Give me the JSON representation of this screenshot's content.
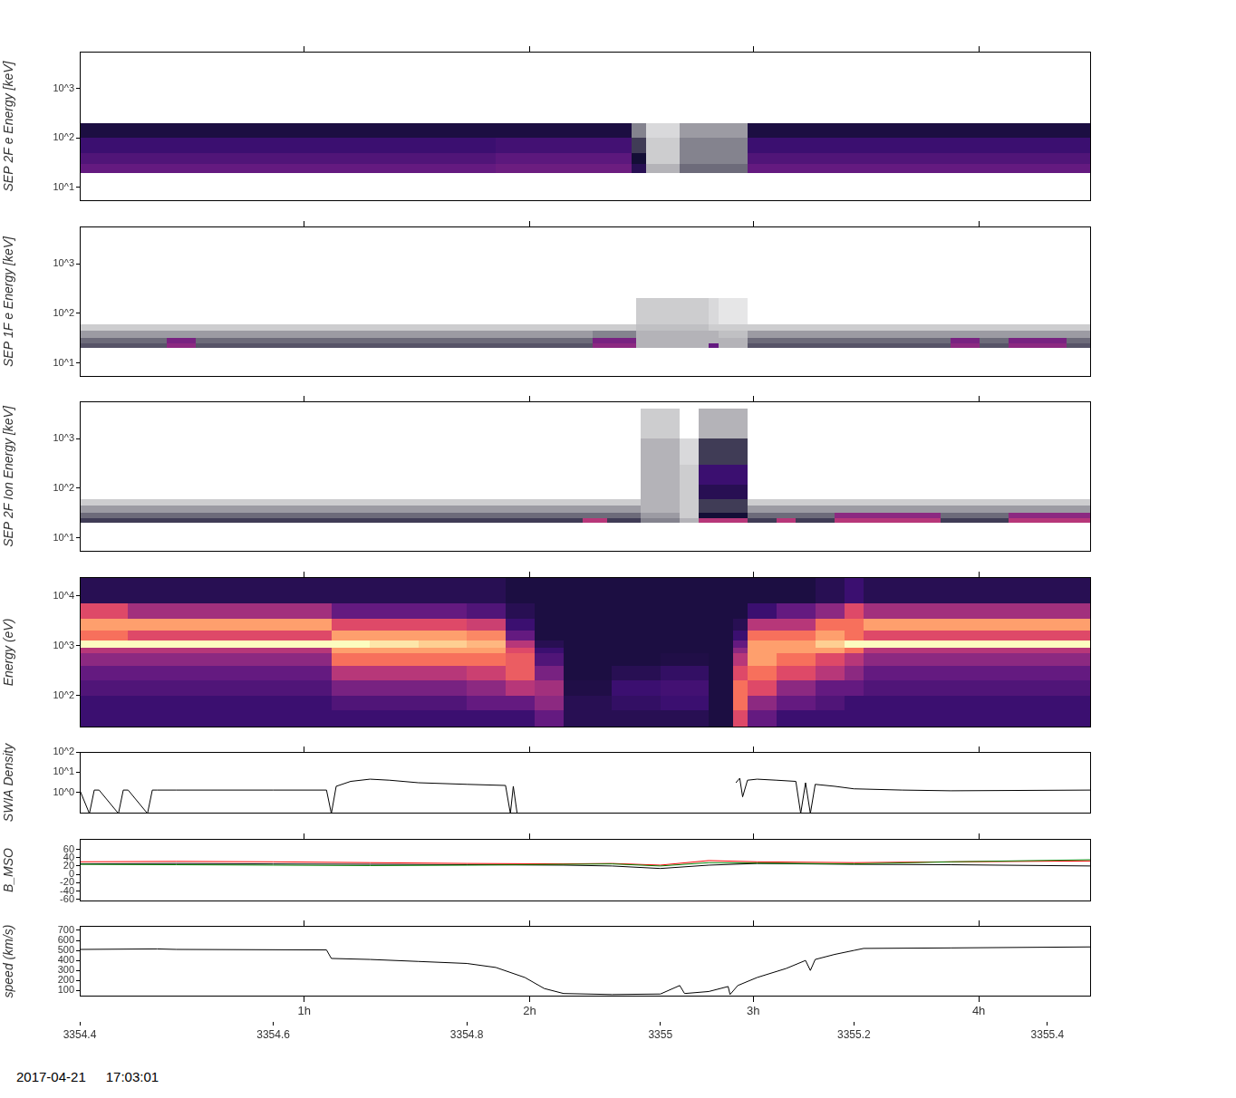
{
  "chart_data": [
    {
      "type": "heatmap",
      "y_label": "SEP 2F e Energy [keV]",
      "log": "y",
      "grid": false,
      "tick_labels": "y",
      "xlim": [
        3354.4,
        3355.445
      ],
      "x2ticks": [
        {
          "value": 3354.632,
          "label": "1h"
        },
        {
          "value": 3354.865,
          "label": "2h"
        },
        {
          "value": 3355.096,
          "label": "3h"
        },
        {
          "value": 3355.329,
          "label": "4h"
        }
      ],
      "ylim": [
        5.3,
        5600
      ],
      "yticks": [
        {
          "value": 10,
          "label": "10^1"
        },
        {
          "value": 100,
          "label": "10^2"
        },
        {
          "value": 1000,
          "label": "10^3"
        }
      ],
      "zlim": [
        0,
        10
      ],
      "x_edges": [
        3354.4,
        3354.83,
        3354.97,
        3354.985,
        3355.02,
        3355.09,
        3355.445
      ],
      "y_edges": [
        20,
        30,
        50,
        100,
        200
      ],
      "cells": [
        [
          3,
          2.5,
          2,
          1.2
        ],
        [
          3.2,
          2.8,
          2.2,
          1.2
        ],
        [
          1.5,
          1,
          0.8,
          0.5
        ],
        [
          0.3,
          0.2,
          0.2,
          0.15
        ],
        [
          0.6,
          0.5,
          0.5,
          0.4
        ],
        [
          3,
          2.5,
          2,
          1.2
        ]
      ]
    },
    {
      "type": "heatmap",
      "y_label": "SEP 1F e Energy [keV]",
      "log": "y",
      "grid": false,
      "tick_labels": "y",
      "xlim": [
        3354.4,
        3355.445
      ],
      "x2ticks": [
        {
          "value": 3354.632,
          "label": "1h"
        },
        {
          "value": 3354.865,
          "label": "2h"
        },
        {
          "value": 3355.096,
          "label": "3h"
        },
        {
          "value": 3355.329,
          "label": "4h"
        }
      ],
      "ylim": [
        5.3,
        5600
      ],
      "yticks": [
        {
          "value": 10,
          "label": "10^1"
        },
        {
          "value": 100,
          "label": "10^2"
        },
        {
          "value": 1000,
          "label": "10^3"
        }
      ],
      "zlim": [
        0,
        10
      ],
      "x_edges": [
        3354.4,
        3354.49,
        3354.52,
        3354.93,
        3354.975,
        3355.05,
        3355.06,
        3355.09,
        3355.3,
        3355.33,
        3355.36,
        3355.42,
        3355.445
      ],
      "y_edges": [
        20,
        25,
        32,
        45,
        60,
        200
      ],
      "cells": [
        [
          0.7,
          0.6,
          0.4,
          0.2,
          null
        ],
        [
          4,
          3.5,
          0.4,
          0.2,
          null
        ],
        [
          0.7,
          0.6,
          0.4,
          0.2,
          null
        ],
        [
          4,
          3.5,
          0.5,
          0.2,
          null
        ],
        [
          0.3,
          0.3,
          0.3,
          0.25,
          0.2
        ],
        [
          3,
          0.3,
          0.3,
          0.2,
          0.15
        ],
        [
          0.3,
          0.3,
          0.25,
          0.2,
          0.1
        ],
        [
          0.7,
          0.6,
          0.4,
          0.2,
          null
        ],
        [
          4,
          3.5,
          0.4,
          0.2,
          null
        ],
        [
          0.7,
          0.6,
          0.4,
          0.2,
          null
        ],
        [
          4,
          3.5,
          0.4,
          0.2,
          null
        ],
        [
          0.7,
          0.6,
          0.4,
          0.2,
          null
        ]
      ]
    },
    {
      "type": "heatmap",
      "y_label": "SEP 2F Ion Energy [keV]",
      "log": "y",
      "grid": false,
      "tick_labels": "y",
      "xlim": [
        3354.4,
        3355.445
      ],
      "x2ticks": [
        {
          "value": 3354.632,
          "label": "1h"
        },
        {
          "value": 3354.865,
          "label": "2h"
        },
        {
          "value": 3355.096,
          "label": "3h"
        },
        {
          "value": 3355.329,
          "label": "4h"
        }
      ],
      "ylim": [
        5.3,
        5600
      ],
      "yticks": [
        {
          "value": 10,
          "label": "10^1"
        },
        {
          "value": 100,
          "label": "10^2"
        },
        {
          "value": 1000,
          "label": "10^3"
        }
      ],
      "zlim": [
        0,
        10
      ],
      "x_edges": [
        3354.4,
        3354.92,
        3354.945,
        3354.98,
        3355.02,
        3355.04,
        3355.09,
        3355.12,
        3355.14,
        3355.18,
        3355.29,
        3355.36,
        3355.445
      ],
      "y_edges": [
        20,
        25,
        32,
        45,
        60,
        120,
        300,
        1000,
        4000
      ],
      "cells": [
        [
          0.8,
          0.6,
          0.4,
          0.2,
          null,
          null,
          null,
          null
        ],
        [
          5,
          0.6,
          0.4,
          0.2,
          null,
          null,
          null,
          null
        ],
        [
          0.8,
          0.6,
          0.4,
          0.2,
          null,
          null,
          null,
          null
        ],
        [
          0.5,
          0.4,
          0.3,
          0.3,
          0.3,
          0.3,
          0.3,
          0.2
        ],
        [
          0.3,
          0.2,
          0.2,
          0.2,
          0.2,
          0.2,
          0.15,
          null
        ],
        [
          5,
          1,
          0.8,
          0.8,
          1.5,
          2,
          0.8,
          0.3
        ],
        [
          0.8,
          0.6,
          0.4,
          0.2,
          null,
          null,
          null,
          null
        ],
        [
          5,
          0.6,
          0.4,
          0.2,
          null,
          null,
          null,
          null
        ],
        [
          0.8,
          0.6,
          0.4,
          0.2,
          null,
          null,
          null,
          null
        ],
        [
          5,
          4,
          0.4,
          0.2,
          null,
          null,
          null,
          null
        ],
        [
          0.8,
          0.6,
          0.4,
          0.2,
          null,
          null,
          null,
          null
        ],
        [
          5,
          4,
          0.4,
          0.2,
          null,
          null,
          null,
          null
        ]
      ]
    },
    {
      "type": "heatmap",
      "y_label": "Energy (eV)",
      "log": "y",
      "grid": false,
      "tick_labels": "y",
      "xlim": [
        3354.4,
        3355.445
      ],
      "x2ticks": [
        {
          "value": 3354.632,
          "label": "1h"
        },
        {
          "value": 3354.865,
          "label": "2h"
        },
        {
          "value": 3355.096,
          "label": "3h"
        },
        {
          "value": 3355.329,
          "label": "4h"
        }
      ],
      "ylim": [
        23,
        24000
      ],
      "yticks": [
        {
          "value": 100,
          "label": "10^2"
        },
        {
          "value": 1000,
          "label": "10^3"
        },
        {
          "value": 10000,
          "label": "10^4"
        }
      ],
      "zlim": [
        0,
        10
      ],
      "x_edges": [
        3354.4,
        3354.45,
        3354.5,
        3354.6,
        3354.66,
        3354.7,
        3354.75,
        3354.8,
        3354.84,
        3354.87,
        3354.9,
        3354.95,
        3355.0,
        3355.05,
        3355.075,
        3355.09,
        3355.12,
        3355.16,
        3355.19,
        3355.21,
        3355.3,
        3355.445
      ],
      "y_edges": [
        23,
        50,
        100,
        200,
        400,
        700,
        900,
        1300,
        2000,
        3500,
        7000,
        24000
      ],
      "cells": [
        [
          2,
          2,
          2.5,
          3,
          4,
          5,
          10,
          7,
          8,
          6,
          1.5
        ],
        [
          2,
          2,
          2.5,
          3,
          4,
          5,
          10,
          6,
          8,
          4.5,
          1.5
        ],
        [
          2,
          2,
          2.5,
          3,
          4,
          5,
          10,
          6,
          8,
          4.5,
          1.5
        ],
        [
          2,
          2,
          2.5,
          3,
          4,
          5,
          10,
          6,
          8,
          4.5,
          1.5
        ],
        [
          2,
          2.5,
          3.5,
          5,
          7,
          8,
          10,
          8,
          6,
          3,
          1.5
        ],
        [
          2,
          2.5,
          3.5,
          5,
          7,
          8,
          9.5,
          8,
          6,
          3,
          1.5
        ],
        [
          2,
          2.5,
          3.5,
          5,
          7,
          8,
          9,
          8,
          6,
          3,
          1.5
        ],
        [
          2,
          3,
          4,
          5.5,
          7,
          8,
          8.5,
          7.5,
          5.5,
          2.5,
          1.5
        ],
        [
          2,
          3,
          5,
          6.5,
          6.5,
          6,
          5,
          3,
          2,
          1.5,
          1.2
        ],
        [
          3,
          4,
          4.5,
          3.5,
          2.5,
          2,
          1.5,
          1.2,
          1.2,
          1.2,
          1.2
        ],
        [
          1.5,
          1.5,
          1.3,
          1.2,
          1.2,
          1.2,
          1.2,
          1.2,
          1.2,
          1.2,
          1.2
        ],
        [
          1.5,
          1.8,
          2,
          1.5,
          1.2,
          1.2,
          1.2,
          1.2,
          1.2,
          1.2,
          1.2
        ],
        [
          1.5,
          2,
          2.2,
          1.8,
          1.3,
          1.2,
          1.2,
          1.2,
          1.2,
          1.2,
          1.2
        ],
        [
          1.2,
          1.2,
          1.2,
          1.2,
          1.2,
          1.2,
          1.2,
          1.2,
          1.2,
          1.2,
          1.2
        ],
        [
          6,
          7,
          7,
          6,
          5,
          4,
          3,
          2,
          1.5,
          1.2,
          1.2
        ],
        [
          3,
          4,
          6,
          7,
          8,
          8,
          8,
          7,
          5,
          2,
          1.2
        ],
        [
          2,
          3,
          4,
          6,
          7,
          8,
          8,
          7,
          5,
          3,
          1.2
        ],
        [
          2,
          2.5,
          3,
          5,
          6,
          8,
          9,
          8,
          7,
          4,
          1.5
        ],
        [
          2,
          2,
          3,
          4,
          5,
          7,
          10,
          7,
          7,
          6,
          2
        ],
        [
          2,
          2,
          2.5,
          3,
          4,
          5,
          10,
          6,
          8,
          4.5,
          1.5
        ],
        [
          2,
          2,
          2.5,
          3,
          4,
          5,
          10,
          6,
          8,
          4.5,
          1.5
        ]
      ]
    },
    {
      "type": "line",
      "y_label": "SWIA Density",
      "log": "y",
      "grid": false,
      "tick_labels": "y",
      "xlim": [
        3354.4,
        3355.445
      ],
      "x2ticks": [
        {
          "value": 3354.632,
          "label": "1h"
        },
        {
          "value": 3354.865,
          "label": "2h"
        },
        {
          "value": 3355.096,
          "label": "3h"
        },
        {
          "value": 3355.329,
          "label": "4h"
        }
      ],
      "ylim": [
        0.09,
        100
      ],
      "yticks": [
        {
          "value": 1,
          "label": "10^0"
        },
        {
          "value": 10,
          "label": "10^1"
        },
        {
          "value": 100,
          "label": "10^2"
        }
      ],
      "x": [
        3354.4,
        3354.41,
        3354.415,
        3354.42,
        3354.44,
        3354.445,
        3354.45,
        3354.47,
        3354.475,
        3354.48,
        3354.5,
        3354.6,
        3354.655,
        3354.66,
        3354.665,
        3354.68,
        3354.7,
        3354.72,
        3354.75,
        3354.8,
        3354.84,
        3354.845,
        3354.848,
        3354.852,
        3354.86,
        3355.076,
        3355.078,
        3355.082,
        3355.085,
        3355.09,
        3355.1,
        3355.12,
        3355.14,
        3355.145,
        3355.15,
        3355.155,
        3355.16,
        3355.18,
        3355.2,
        3355.25,
        3355.3,
        3355.445
      ],
      "series": [
        {
          "color": "#000000",
          "values": [
            1.3,
            0.09,
            1.3,
            1.3,
            0.09,
            1.3,
            1.3,
            0.09,
            1.3,
            1.3,
            1.3,
            1.3,
            1.3,
            0.09,
            2,
            3.5,
            4.5,
            4,
            3,
            2.5,
            2.2,
            0.09,
            2,
            0.09,
            null,
            null,
            3,
            5,
            0.6,
            4,
            4.5,
            4,
            3.5,
            0.09,
            3,
            0.09,
            2.5,
            2,
            1.5,
            1.3,
            1.2,
            1.3
          ]
        }
      ]
    },
    {
      "type": "line",
      "y_label": "B_MSO",
      "grid": false,
      "tick_labels": "y",
      "xlim": [
        3354.4,
        3355.445
      ],
      "x2ticks": [
        {
          "value": 3354.632,
          "label": "1h"
        },
        {
          "value": 3354.865,
          "label": "2h"
        },
        {
          "value": 3355.096,
          "label": "3h"
        },
        {
          "value": 3355.329,
          "label": "4h"
        }
      ],
      "ylim": [
        -65,
        85
      ],
      "yticks": [
        -60,
        -40,
        -20,
        0,
        20,
        40,
        60
      ],
      "x": [
        3354.4,
        3354.5,
        3354.6,
        3354.7,
        3354.8,
        3354.9,
        3354.95,
        3355.0,
        3355.05,
        3355.1,
        3355.2,
        3355.3,
        3355.445
      ],
      "series": [
        {
          "color": "#008000",
          "values": [
            24,
            23,
            22,
            21,
            22,
            24,
            25,
            20,
            28,
            27,
            25,
            30,
            35
          ]
        },
        {
          "color": "#ff0000",
          "values": [
            30,
            31,
            30,
            28,
            26,
            25,
            26,
            22,
            33,
            30,
            28,
            30,
            32
          ]
        },
        {
          "color": "#000000",
          "values": [
            25,
            26,
            25,
            24,
            23,
            22,
            20,
            14,
            22,
            26,
            24,
            23,
            20
          ]
        }
      ]
    },
    {
      "type": "line",
      "y_label": "speed (km/s)",
      "grid": false,
      "xlim": [
        3354.4,
        3355.445
      ],
      "xticks": [
        3354.4,
        3354.6,
        3354.8,
        3355,
        3355.2,
        3355.4
      ],
      "x2ticks": [
        {
          "value": 3354.632,
          "label": "1h"
        },
        {
          "value": 3354.865,
          "label": "2h"
        },
        {
          "value": 3355.096,
          "label": "3h"
        },
        {
          "value": 3355.329,
          "label": "4h"
        }
      ],
      "ylim": [
        40,
        745
      ],
      "yticks": [
        100,
        200,
        300,
        400,
        500,
        600,
        700
      ],
      "x": [
        3354.4,
        3354.48,
        3354.5,
        3354.655,
        3354.66,
        3354.7,
        3354.75,
        3354.8,
        3354.83,
        3354.86,
        3354.88,
        3354.9,
        3354.95,
        3355.0,
        3355.02,
        3355.025,
        3355.05,
        3355.07,
        3355.072,
        3355.08,
        3355.1,
        3355.13,
        3355.15,
        3355.155,
        3355.16,
        3355.18,
        3355.2,
        3355.21,
        3355.3,
        3355.445
      ],
      "series": [
        {
          "color": "#000000",
          "values": [
            510,
            515,
            510,
            505,
            420,
            410,
            390,
            370,
            330,
            230,
            120,
            70,
            60,
            65,
            150,
            70,
            90,
            140,
            60,
            150,
            230,
            320,
            400,
            300,
            410,
            460,
            500,
            520,
            525,
            535
          ]
        }
      ]
    }
  ],
  "footer": {
    "date": "2017-04-21",
    "time": "17:03:01"
  }
}
